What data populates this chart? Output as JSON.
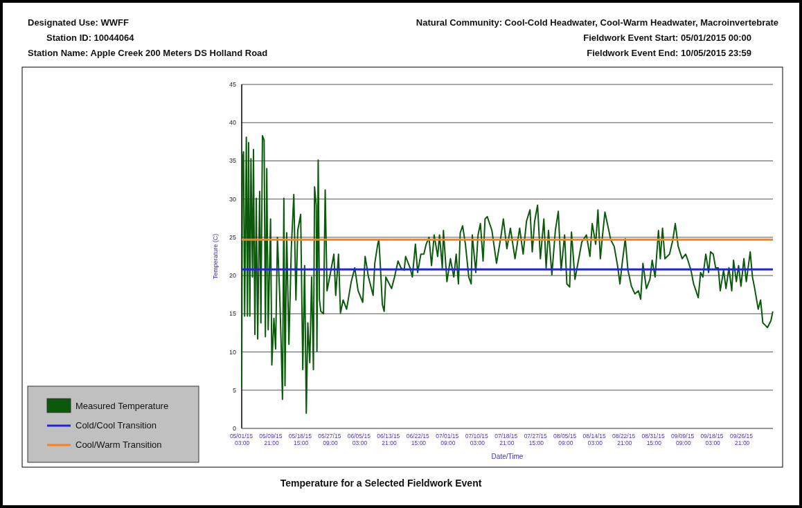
{
  "chart_data": {
    "type": "line",
    "title": "Temperature for a Selected Fieldwork Event",
    "annotations": [
      "Designated Use: WWFF",
      "Station ID: 10044064",
      "Station Name: Apple Creek 200 Meters DS Holland Road",
      "Natural Community: Cool-Cold Headwater, Cool-Warm Headwater, Macroinvertebrate",
      "Fieldwork Event Start:  05/01/2015 00:00",
      "Fieldwork Event End:  10/05/2015 23:59"
    ],
    "xlabel": "Date/Time",
    "ylabel": "Temperature (C)",
    "xlim": [
      "2015-05-01T00:00",
      "2015-10-06T00:00"
    ],
    "xticks": [
      {
        "value": "2015-05-01T03:00",
        "label": "05/01/15 03:00"
      },
      {
        "value": "2015-05-09T21:00",
        "label": "05/09/15 21:00"
      },
      {
        "value": "2015-05-18T15:00",
        "label": "05/18/15 15:00"
      },
      {
        "value": "2015-05-27T09:00",
        "label": "05/27/15 09:00"
      },
      {
        "value": "2015-06-05T03:00",
        "label": "06/05/15 03:00"
      },
      {
        "value": "2015-06-13T21:00",
        "label": "06/13/15 21:00"
      },
      {
        "value": "2015-06-22T15:00",
        "label": "06/22/15 15:00"
      },
      {
        "value": "2015-07-01T09:00",
        "label": "07/01/15 09:00"
      },
      {
        "value": "2015-07-10T03:00",
        "label": "07/10/15 03:00"
      },
      {
        "value": "2015-07-18T21:00",
        "label": "07/18/15 21:00"
      },
      {
        "value": "2015-07-27T15:00",
        "label": "07/27/15 15:00"
      },
      {
        "value": "2015-08-05T09:00",
        "label": "08/05/15 09:00"
      },
      {
        "value": "2015-08-14T03:00",
        "label": "08/14/15 03:00"
      },
      {
        "value": "2015-08-22T21:00",
        "label": "08/22/15 21:00"
      },
      {
        "value": "2015-08-31T15:00",
        "label": "08/31/15 15:00"
      },
      {
        "value": "2015-09-09T09:00",
        "label": "09/09/15 09:00"
      },
      {
        "value": "2015-09-18T03:00",
        "label": "09/18/15 03:00"
      },
      {
        "value": "2015-09-26T21:00",
        "label": "09/26/15 21:00"
      }
    ],
    "ylim": [
      0,
      45
    ],
    "yticks": [
      0,
      5,
      10,
      15,
      20,
      25,
      30,
      35,
      40,
      45
    ],
    "grid": "y",
    "legend": "bottom left",
    "ref_lines": [
      {
        "axis": "y",
        "value": 20.8,
        "label": "Cold/Cool Transition",
        "color": "#2222dd"
      },
      {
        "axis": "y",
        "value": 24.7,
        "label": "Cool/Warm Transition",
        "color": "#ff7f1e"
      }
    ],
    "series": [
      {
        "name": "Measured Temperature",
        "color": "#0b5a0b",
        "x": [
          "2015-05-01T00:00",
          "2015-05-01T05:00",
          "2015-05-01T13:00",
          "2015-05-01T21:00",
          "2015-05-02T09:00",
          "2015-05-02T17:00",
          "2015-05-03T01:00",
          "2015-05-03T10:00",
          "2015-05-03T18:00",
          "2015-05-04T05:00",
          "2015-05-04T12:00",
          "2015-05-04T22:00",
          "2015-05-05T08:00",
          "2015-05-05T18:00",
          "2015-05-06T08:00",
          "2015-05-06T17:00",
          "2015-05-07T04:00",
          "2015-05-07T16:00",
          "2015-05-08T01:00",
          "2015-05-08T11:00",
          "2015-05-08T21:00",
          "2015-05-09T14:00",
          "2015-05-09T23:00",
          "2015-05-10T14:00",
          "2015-05-11T02:00",
          "2015-05-11T15:00",
          "2015-05-12T08:00",
          "2015-05-12T18:00",
          "2015-05-13T03:00",
          "2015-05-13T13:00",
          "2015-05-13T21:00",
          "2015-05-14T09:00",
          "2015-05-15T01:00",
          "2015-05-15T18:00",
          "2015-05-16T12:00",
          "2015-05-17T03:00",
          "2015-05-17T16:00",
          "2015-05-18T13:00",
          "2015-05-19T04:00",
          "2015-05-19T17:00",
          "2015-05-20T05:00",
          "2015-05-20T16:00",
          "2015-05-21T06:00",
          "2015-05-21T19:00",
          "2015-05-22T08:00",
          "2015-05-22T16:00",
          "2015-05-23T04:00",
          "2015-05-23T09:00",
          "2015-05-23T18:00",
          "2015-05-24T03:00",
          "2015-05-24T13:00",
          "2015-05-25T08:00",
          "2015-05-25T20:00",
          "2015-05-26T09:00",
          "2015-05-27T10:00",
          "2015-05-28T10:00",
          "2015-05-28T23:00",
          "2015-05-29T19:00",
          "2015-05-30T09:00",
          "2015-05-31T04:00",
          "2015-06-01T05:00",
          "2015-06-02T14:00",
          "2015-06-03T15:00",
          "2015-06-04T15:00",
          "2015-06-06T00:00",
          "2015-06-06T17:00",
          "2015-06-07T17:00",
          "2015-06-09T02:00",
          "2015-06-09T14:00",
          "2015-06-10T11:00",
          "2015-06-10T19:00",
          "2015-06-11T04:00",
          "2015-06-11T20:00",
          "2015-06-12T09:00",
          "2015-06-12T21:00",
          "2015-06-13T13:00",
          "2015-06-14T14:00",
          "2015-06-15T11:00",
          "2015-06-16T12:00",
          "2015-06-17T09:00",
          "2015-06-18T08:00",
          "2015-06-18T18:00",
          "2015-06-20T02:00",
          "2015-06-20T18:00",
          "2015-06-21T16:00",
          "2015-06-22T08:00",
          "2015-06-23T07:00",
          "2015-06-24T04:00",
          "2015-06-24T21:00",
          "2015-06-25T17:00",
          "2015-06-26T11:00",
          "2015-06-27T06:00",
          "2015-06-28T07:00",
          "2015-06-28T20:00",
          "2015-06-29T16:00",
          "2015-06-30T00:00",
          "2015-07-01T01:00",
          "2015-07-02T02:00",
          "2015-07-03T02:00",
          "2015-07-03T19:00",
          "2015-07-04T11:00",
          "2015-07-05T00:00",
          "2015-07-05T17:00",
          "2015-07-06T13:00",
          "2015-07-07T13:00",
          "2015-07-08T06:00",
          "2015-07-08T14:00",
          "2015-07-09T15:00",
          "2015-07-10T07:00",
          "2015-07-11T00:00",
          "2015-07-11T19:00",
          "2015-07-12T09:00",
          "2015-07-13T01:00",
          "2015-07-14T10:00",
          "2015-07-15T19:00",
          "2015-07-17T04:00",
          "2015-07-17T20:00",
          "2015-07-18T21:00",
          "2015-07-19T22:00",
          "2015-07-21T07:00",
          "2015-07-22T16:00",
          "2015-07-23T17:00",
          "2015-07-24T17:00",
          "2015-07-25T18:00",
          "2015-07-26T10:00",
          "2015-07-27T03:00",
          "2015-07-28T00:00",
          "2015-07-28T20:00",
          "2015-07-29T21:00",
          "2015-07-30T13:00",
          "2015-07-31T06:00",
          "2015-08-01T06:00",
          "2015-08-02T07:00",
          "2015-08-03T04:00",
          "2015-08-04T00:00",
          "2015-08-05T01:00",
          "2015-08-05T17:00",
          "2015-08-06T13:00",
          "2015-08-07T02:00",
          "2015-08-08T03:00",
          "2015-08-09T04:00",
          "2015-08-10T04:00",
          "2015-08-11T13:00",
          "2015-08-12T14:00",
          "2015-08-13T06:00",
          "2015-08-14T07:00",
          "2015-08-14T23:00",
          "2015-08-15T16:00",
          "2015-08-16T08:00",
          "2015-08-17T01:00",
          "2015-08-18T01:00",
          "2015-08-18T18:00",
          "2015-08-19T19:00",
          "2015-08-20T19:00",
          "2015-08-21T12:00",
          "2015-08-22T04:00",
          "2015-08-23T02:00",
          "2015-08-23T21:00",
          "2015-08-24T22:00",
          "2015-08-25T23:00",
          "2015-08-27T00:00",
          "2015-08-27T16:00",
          "2015-08-28T08:00",
          "2015-08-29T09:00",
          "2015-08-30T10:00",
          "2015-08-31T02:00",
          "2015-08-31T23:00",
          "2015-09-01T23:00",
          "2015-09-02T12:00",
          "2015-09-03T04:00",
          "2015-09-03T21:00",
          "2015-09-05T06:00",
          "2015-09-06T06:00",
          "2015-09-06T23:00",
          "2015-09-07T20:00",
          "2015-09-09T00:00",
          "2015-09-10T01:00",
          "2015-09-10T17:00",
          "2015-09-11T15:00",
          "2015-09-12T10:00",
          "2015-09-13T03:00",
          "2015-09-13T19:00",
          "2015-09-14T12:00",
          "2015-09-15T04:00",
          "2015-09-16T01:00",
          "2015-09-16T21:00",
          "2015-09-17T11:00",
          "2015-09-18T06:00",
          "2015-09-18T23:00",
          "2015-09-19T18:00",
          "2015-09-20T08:00",
          "2015-09-21T08:00",
          "2015-09-22T01:00",
          "2015-09-22T22:00",
          "2015-09-23T18:00",
          "2015-09-24T07:00",
          "2015-09-25T03:00",
          "2015-09-25T19:00",
          "2015-09-26T12:00",
          "2015-09-27T09:00",
          "2015-09-28T02:00",
          "2015-09-29T06:00",
          "2015-09-29T22:00",
          "2015-09-30T14:00",
          "2015-10-01T15:00",
          "2015-10-02T08:00",
          "2015-10-03T00:00",
          "2015-10-03T17:00",
          "2015-10-04T09:00",
          "2015-10-05T10:00",
          "2015-10-05T23:00"
        ],
        "values": [
          5.4,
          35.0,
          36.2,
          14.7,
          38.1,
          14.7,
          37.4,
          14.7,
          35.3,
          19.8,
          36.5,
          12.3,
          30.1,
          11.7,
          31.0,
          13.8,
          38.3,
          37.7,
          12.0,
          34.0,
          12.9,
          27.4,
          8.3,
          14.4,
          10.4,
          25.0,
          17.1,
          10.7,
          3.8,
          30.1,
          5.6,
          25.6,
          11.0,
          23.5,
          30.6,
          16.8,
          25.9,
          28.0,
          7.7,
          21.3,
          2.0,
          13.8,
          8.6,
          19.8,
          7.7,
          31.6,
          29.2,
          10.1,
          35.1,
          16.8,
          15.3,
          15.0,
          31.2,
          18.0,
          20.4,
          22.8,
          17.4,
          22.8,
          15.1,
          16.8,
          15.6,
          19.2,
          21.0,
          18.0,
          16.5,
          22.5,
          19.8,
          17.4,
          21.6,
          24.1,
          24.7,
          21.9,
          16.2,
          15.3,
          19.8,
          19.2,
          18.3,
          19.8,
          21.9,
          21.0,
          20.7,
          22.5,
          21.0,
          19.8,
          24.1,
          20.4,
          22.8,
          22.8,
          24.1,
          25.0,
          21.3,
          25.3,
          22.5,
          25.3,
          21.0,
          25.9,
          19.2,
          22.2,
          19.8,
          22.8,
          18.9,
          25.6,
          26.5,
          24.1,
          19.8,
          18.9,
          25.3,
          20.4,
          25.3,
          26.8,
          21.9,
          27.4,
          27.7,
          25.9,
          21.6,
          25.3,
          27.4,
          23.5,
          26.2,
          22.2,
          26.2,
          22.8,
          27.1,
          28.6,
          23.1,
          27.1,
          29.2,
          22.2,
          27.4,
          21.0,
          25.9,
          20.1,
          25.9,
          28.4,
          20.7,
          25.3,
          18.9,
          18.5,
          25.7,
          19.5,
          22.0,
          24.4,
          25.3,
          22.5,
          26.8,
          24.1,
          28.6,
          22.2,
          25.3,
          28.3,
          26.2,
          24.7,
          23.8,
          21.3,
          18.9,
          21.6,
          24.8,
          20.7,
          18.6,
          17.6,
          18.0,
          16.9,
          21.6,
          18.3,
          19.5,
          22.0,
          19.8,
          25.9,
          22.2,
          26.2,
          22.2,
          22.8,
          24.7,
          26.8,
          23.8,
          22.2,
          22.8,
          22.0,
          20.7,
          18.9,
          18.0,
          17.1,
          20.4,
          19.8,
          22.8,
          20.4,
          23.1,
          22.8,
          21.0,
          21.0,
          18.0,
          20.7,
          18.3,
          21.0,
          18.0,
          22.0,
          19.2,
          21.3,
          18.6,
          22.2,
          19.2,
          23.1,
          19.8,
          18.3,
          15.6,
          16.8,
          13.8,
          13.5,
          13.2,
          14.1,
          15.3
        ]
      }
    ]
  }
}
